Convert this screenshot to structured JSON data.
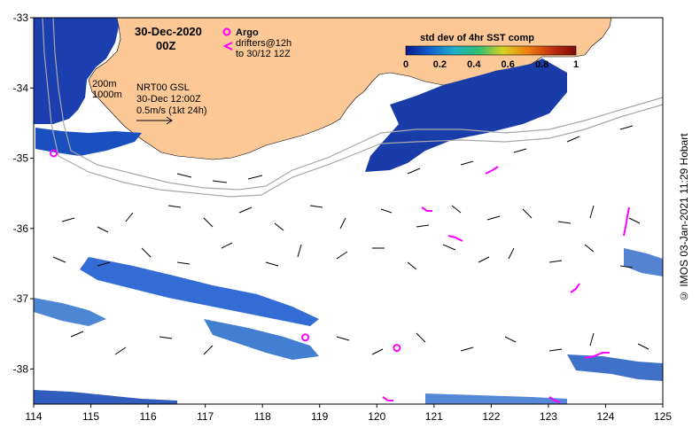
{
  "title": {
    "date": "30-Dec-2020",
    "time": "00Z"
  },
  "legend": {
    "argo_label": "Argo",
    "drifters_line1": "drifters@12h",
    "drifters_line2": "to 30/12 12Z"
  },
  "colorbar": {
    "title": "std dev of 4hr SST comp",
    "ticks": [
      "0",
      "0.2",
      "0.4",
      "0.6",
      "0.8",
      "1"
    ],
    "stops": [
      "#0a1a8c",
      "#1060d0",
      "#20b0c8",
      "#30c070",
      "#d8d020",
      "#f08010",
      "#c03010",
      "#7a0c0c"
    ]
  },
  "annotations": {
    "isobath_200": "200m",
    "isobath_1000": "1000m",
    "model_line1": "NRT00 GSL",
    "model_line2": "30-Dec 12:00Z",
    "model_line3": "0.5m/s (1kt 24h)"
  },
  "axes": {
    "x_ticks": [
      "114",
      "115",
      "116",
      "117",
      "118",
      "119",
      "120",
      "121",
      "122",
      "123",
      "124",
      "125"
    ],
    "y_ticks": [
      "-33",
      "-34",
      "-35",
      "-36",
      "-37",
      "-38"
    ],
    "x_range": [
      114,
      125
    ],
    "y_range": [
      -38.5,
      -33
    ]
  },
  "credit": "© IMOS 03-Jan-2021 11:29 Hobart",
  "colors": {
    "land": "#fbc896",
    "ocean": "#ffffff",
    "isobath": "#a8a8a8",
    "marker": "#ff00ff"
  },
  "argo_floats": [
    {
      "lon": 114.35,
      "lat": -34.93
    },
    {
      "lon": 118.75,
      "lat": -37.55
    },
    {
      "lon": 120.35,
      "lat": -37.7
    }
  ]
}
